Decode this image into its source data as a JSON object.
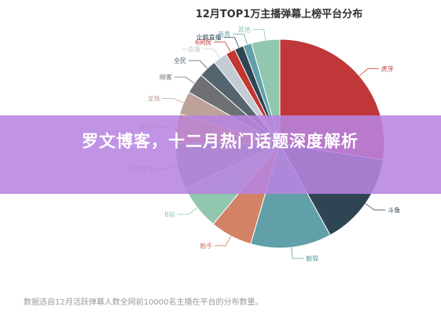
{
  "banner": {
    "headline": "罗文博客，十二月热门话题深度解析"
  },
  "chart_data": {
    "type": "pie",
    "title": "12月TOP1万主播弹幕上榜平台分布",
    "footnote": "数据选自12月活跃弹幕人数全网前10000名主播在平台的分布数量。",
    "slices": [
      {
        "label": "虎牙",
        "value": 27.5,
        "color": "#c0373a"
      },
      {
        "label": "斗鱼",
        "value": 14.5,
        "color": "#2f4554"
      },
      {
        "label": "触猫",
        "value": 12.5,
        "color": "#61a0a8"
      },
      {
        "label": "触手",
        "value": 6.5,
        "color": "#d48265"
      },
      {
        "label": "B站",
        "value": 7.0,
        "color": "#91c7ae"
      },
      {
        "label": "企鹅电竞",
        "value": 7.0,
        "color": "#749f83"
      },
      {
        "label": "花椒",
        "value": 4.6,
        "color": "#e5a12f"
      },
      {
        "label": "龙珠",
        "value": 3.6,
        "color": "#bda29a"
      },
      {
        "label": "映客",
        "value": 3.2,
        "color": "#6e7074"
      },
      {
        "label": "全民",
        "value": 2.8,
        "color": "#546570"
      },
      {
        "label": "一直播",
        "value": 2.2,
        "color": "#c4ccd3"
      },
      {
        "label": "6间房",
        "value": 1.5,
        "color": "#c23531"
      },
      {
        "label": "企鹅直播",
        "value": 1.4,
        "color": "#2f4554"
      },
      {
        "label": "奇秀",
        "value": 1.3,
        "color": "#61a0a8"
      },
      {
        "label": "其他",
        "value": 4.4,
        "color": "#91c7ae"
      }
    ]
  }
}
